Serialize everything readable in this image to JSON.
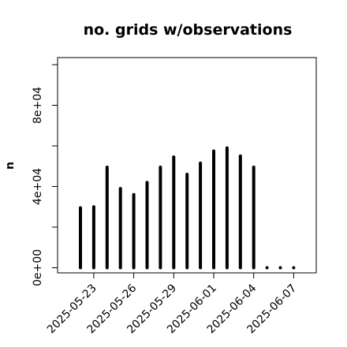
{
  "chart_data": {
    "type": "bar",
    "title": "no. grids w/observations",
    "xlabel": "",
    "ylabel": "n",
    "ylim": [
      0,
      100000
    ],
    "yticks": [
      {
        "value": 0,
        "label": "0e+00"
      },
      {
        "value": 20000,
        "label": ""
      },
      {
        "value": 40000,
        "label": "4e+04"
      },
      {
        "value": 60000,
        "label": ""
      },
      {
        "value": 80000,
        "label": "8e+04"
      },
      {
        "value": 100000,
        "label": ""
      }
    ],
    "x": [
      "2025-05-22",
      "2025-05-23",
      "2025-05-24",
      "2025-05-25",
      "2025-05-26",
      "2025-05-27",
      "2025-05-28",
      "2025-05-29",
      "2025-05-30",
      "2025-05-31",
      "2025-06-01",
      "2025-06-02",
      "2025-06-03",
      "2025-06-04",
      "2025-06-05",
      "2025-06-06",
      "2025-06-07"
    ],
    "values": [
      29500,
      30000,
      49500,
      39000,
      36000,
      42000,
      49500,
      54500,
      46000,
      51500,
      57500,
      59000,
      55000,
      49500,
      0,
      0,
      0
    ],
    "xticks": [
      {
        "label": "2025-05-23",
        "color": "#000000"
      },
      {
        "label": "2025-05-26",
        "color": "#000000"
      },
      {
        "label": "2025-05-29",
        "color": "#228B22"
      },
      {
        "label": "2025-06-01",
        "color": "#000000"
      },
      {
        "label": "2025-06-04",
        "color": "#000000"
      },
      {
        "label": "2025-06-07",
        "color": "#000000"
      }
    ],
    "bar_color": "#000000",
    "grid": false
  }
}
